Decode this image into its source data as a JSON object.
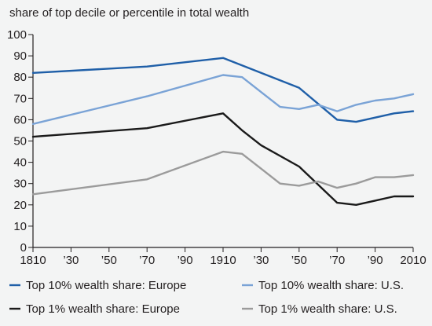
{
  "chart_data": {
    "type": "line",
    "ylabel": "share of top decile or percentile in total wealth",
    "xlabel": "",
    "title": "",
    "xlim": [
      1810,
      2010
    ],
    "ylim": [
      0,
      100
    ],
    "x_ticks": [
      1810,
      1830,
      1850,
      1870,
      1890,
      1910,
      1930,
      1950,
      1970,
      1990,
      2010
    ],
    "x_tick_labels": [
      "1810",
      "’30",
      "’50",
      "’70",
      "’90",
      "1910",
      "’30",
      "’50",
      "’70",
      "’90",
      "2010"
    ],
    "y_ticks": [
      0,
      10,
      20,
      30,
      40,
      50,
      60,
      70,
      80,
      90,
      100
    ],
    "y_tick_labels": [
      "0",
      "10",
      "20",
      "30",
      "40",
      "50",
      "60",
      "70",
      "80",
      "90",
      "100"
    ],
    "grid": false,
    "legend_position": "bottom",
    "series": [
      {
        "name": "Top 10% wealth share: Europe",
        "color": "#1f5fa8",
        "x": [
          1810,
          1870,
          1910,
          1930,
          1950,
          1970,
          1980,
          1990,
          2000,
          2010
        ],
        "values": [
          82,
          85,
          89,
          82,
          75,
          60,
          59,
          61,
          63,
          64
        ]
      },
      {
        "name": "Top 10% wealth share: U.S.",
        "color": "#7aa3d6",
        "x": [
          1810,
          1870,
          1910,
          1920,
          1930,
          1940,
          1950,
          1960,
          1970,
          1980,
          1990,
          2000,
          2010
        ],
        "values": [
          58,
          71,
          81,
          80,
          73,
          66,
          65,
          67,
          64,
          67,
          69,
          70,
          72
        ]
      },
      {
        "name": "Top 1% wealth share: Europe",
        "color": "#1a1a1a",
        "x": [
          1810,
          1870,
          1910,
          1920,
          1930,
          1950,
          1970,
          1980,
          1990,
          2000,
          2010
        ],
        "values": [
          52,
          56,
          63,
          55,
          48,
          38,
          21,
          20,
          22,
          24,
          24
        ]
      },
      {
        "name": "Top 1% wealth share: U.S.",
        "color": "#9b9b9b",
        "x": [
          1810,
          1870,
          1910,
          1920,
          1930,
          1940,
          1950,
          1960,
          1970,
          1980,
          1990,
          2000,
          2010
        ],
        "values": [
          25,
          32,
          45,
          44,
          37,
          30,
          29,
          31,
          28,
          30,
          33,
          33,
          34
        ]
      }
    ]
  }
}
